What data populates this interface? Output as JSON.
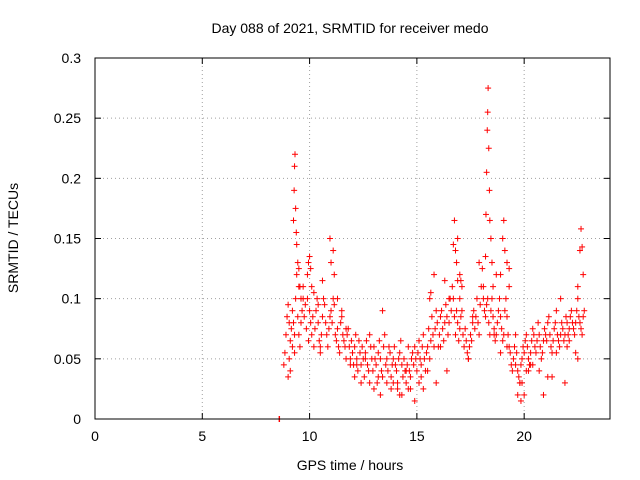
{
  "chart_data": {
    "type": "scatter",
    "title": "Day 088 of 2021, SRMTID for receiver medo",
    "xlabel": "GPS time / hours",
    "ylabel": "SRMTID / TECUs",
    "xlim": [
      0,
      24
    ],
    "ylim": [
      0,
      0.3
    ],
    "x_ticks": [
      {
        "value": 0,
        "label": "0"
      },
      {
        "value": 5,
        "label": "5"
      },
      {
        "value": 10,
        "label": "10"
      },
      {
        "value": 15,
        "label": "15"
      },
      {
        "value": 20,
        "label": "20"
      }
    ],
    "y_ticks": [
      {
        "value": 0,
        "label": "0"
      },
      {
        "value": 0.05,
        "label": "0.05"
      },
      {
        "value": 0.1,
        "label": "0.1"
      },
      {
        "value": 0.15,
        "label": "0.15"
      },
      {
        "value": 0.2,
        "label": "0.2"
      },
      {
        "value": 0.25,
        "label": "0.25"
      },
      {
        "value": 0.3,
        "label": "0.3"
      }
    ],
    "grid": true,
    "marker": "plus",
    "color": "#ff0000",
    "series": [
      {
        "name": "SRMTID",
        "x": [
          8.58,
          8.6,
          8.8,
          8.85,
          8.9,
          8.95,
          9.0,
          9.05,
          9.1,
          9.15,
          9.2,
          9.25,
          9.3,
          9.35,
          9.4,
          9.45,
          9.5,
          9.55,
          9.6,
          9.65,
          9.7,
          9.75,
          9.8,
          9.85,
          9.9,
          9.95,
          10.0,
          10.05,
          10.1,
          10.15,
          10.2,
          10.25,
          10.3,
          10.35,
          10.4,
          10.45,
          10.5,
          10.55,
          10.6,
          10.65,
          10.7,
          10.75,
          10.8,
          10.85,
          10.9,
          10.95,
          11.0,
          11.05,
          11.1,
          11.15,
          11.2,
          11.25,
          11.3,
          11.35,
          11.4,
          11.45,
          11.5,
          11.55,
          11.6,
          11.65,
          11.7,
          11.75,
          11.8,
          11.85,
          11.9,
          11.95,
          12.0,
          12.05,
          12.1,
          12.15,
          12.2,
          12.25,
          12.3,
          12.35,
          12.4,
          12.45,
          12.5,
          12.55,
          12.6,
          12.65,
          12.7,
          12.75,
          12.8,
          12.85,
          12.9,
          12.95,
          13.0,
          13.05,
          13.1,
          13.15,
          13.2,
          13.25,
          13.3,
          13.35,
          13.4,
          13.45,
          13.5,
          13.55,
          13.6,
          13.65,
          13.7,
          13.75,
          13.8,
          13.85,
          13.9,
          13.95,
          14.0,
          14.05,
          14.1,
          14.15,
          14.2,
          14.25,
          14.3,
          14.35,
          14.4,
          14.45,
          14.5,
          14.55,
          14.6,
          14.65,
          14.7,
          14.75,
          14.8,
          14.85,
          14.9,
          14.95,
          15.0,
          15.05,
          15.1,
          15.15,
          15.2,
          15.25,
          15.3,
          15.35,
          15.4,
          15.45,
          15.5,
          15.55,
          15.6,
          15.65,
          15.7,
          15.75,
          15.8,
          15.85,
          15.9,
          15.95,
          16.0,
          16.05,
          16.1,
          16.15,
          16.2,
          16.25,
          16.3,
          16.35,
          16.4,
          16.45,
          16.5,
          16.55,
          16.6,
          16.65,
          16.7,
          16.75,
          16.8,
          16.85,
          16.9,
          16.95,
          17.0,
          17.05,
          17.1,
          17.15,
          17.2,
          17.25,
          17.3,
          17.35,
          17.4,
          17.45,
          17.5,
          17.55,
          17.6,
          17.65,
          17.7,
          17.75,
          17.8,
          17.85,
          17.9,
          17.95,
          18.0,
          18.05,
          18.1,
          18.15,
          18.2,
          18.25,
          18.3,
          18.35,
          18.4,
          18.45,
          18.5,
          18.55,
          18.6,
          18.65,
          18.7,
          18.75,
          18.8,
          18.85,
          18.9,
          18.95,
          19.0,
          19.05,
          19.1,
          19.15,
          19.2,
          19.25,
          19.3,
          19.35,
          19.4,
          19.45,
          19.5,
          19.55,
          19.6,
          19.65,
          19.7,
          19.75,
          19.8,
          19.85,
          19.9,
          19.95,
          20.0,
          20.05,
          20.1,
          20.15,
          20.2,
          20.25,
          20.3,
          20.35,
          20.4,
          20.45,
          20.5,
          20.55,
          20.6,
          20.65,
          20.7,
          20.75,
          20.8,
          20.85,
          20.9,
          20.95,
          21.0,
          21.05,
          21.1,
          21.15,
          21.2,
          21.25,
          21.3,
          21.35,
          21.4,
          21.45,
          21.5,
          21.55,
          21.6,
          21.65,
          21.7,
          21.75,
          21.8,
          21.85,
          21.9,
          21.95,
          22.0,
          22.05,
          22.1,
          22.15,
          22.2,
          22.25,
          22.3,
          22.35,
          22.4,
          22.45,
          22.5,
          22.55,
          22.6,
          22.65,
          22.7,
          22.75,
          22.8,
          9.25,
          9.28,
          9.3,
          9.32,
          9.35,
          9.38,
          9.4,
          9.45,
          9.5,
          9.55,
          9.9,
          9.95,
          10.0,
          10.05,
          10.95,
          11.0,
          11.1,
          11.15,
          16.7,
          16.75,
          16.8,
          16.85,
          16.9,
          17.0,
          17.05,
          17.1,
          18.2,
          18.22,
          18.25,
          18.28,
          18.3,
          18.32,
          18.35,
          18.38,
          18.4,
          18.45,
          18.5,
          18.55,
          18.9,
          19.0,
          19.05,
          19.1,
          19.2,
          19.3,
          22.6,
          22.65,
          22.7,
          22.75,
          22.5,
          15.6,
          15.65,
          15.8,
          16.3,
          16.5,
          9.0,
          9.1,
          9.2,
          9.5,
          9.7,
          10.2,
          10.4,
          10.6,
          11.5,
          11.7,
          12.2,
          12.6,
          13.2,
          13.6,
          14.1,
          14.3,
          14.7,
          15.2,
          15.5,
          16.1,
          16.9,
          17.4,
          17.9,
          18.6,
          18.9,
          19.2,
          19.6,
          19.9,
          20.1,
          20.4,
          20.9,
          21.3,
          21.7,
          22.1,
          22.4,
          9.05,
          9.3,
          9.6,
          10.1,
          10.5,
          11.3,
          11.9,
          12.4,
          13.0,
          13.4,
          13.9,
          14.5,
          14.9,
          15.3,
          15.9,
          16.4,
          17.0,
          17.6,
          18.1,
          18.7,
          19.3,
          19.8,
          20.3,
          20.7,
          21.1,
          21.5,
          22.0,
          22.5,
          12.1,
          12.8,
          13.3,
          13.8,
          14.2,
          14.6,
          15.1,
          19.7,
          19.85,
          20.0,
          20.2,
          21.9
        ],
        "y": [
          0.0,
          0.0,
          0.045,
          0.055,
          0.07,
          0.085,
          0.095,
          0.08,
          0.065,
          0.075,
          0.09,
          0.08,
          0.07,
          0.1,
          0.12,
          0.085,
          0.07,
          0.06,
          0.08,
          0.09,
          0.11,
          0.085,
          0.095,
          0.075,
          0.1,
          0.065,
          0.09,
          0.08,
          0.07,
          0.085,
          0.06,
          0.075,
          0.09,
          0.1,
          0.08,
          0.065,
          0.055,
          0.07,
          0.085,
          0.1,
          0.095,
          0.08,
          0.07,
          0.06,
          0.075,
          0.085,
          0.09,
          0.08,
          0.1,
          0.095,
          0.07,
          0.065,
          0.075,
          0.06,
          0.055,
          0.08,
          0.085,
          0.07,
          0.065,
          0.06,
          0.05,
          0.07,
          0.075,
          0.06,
          0.05,
          0.065,
          0.055,
          0.045,
          0.06,
          0.07,
          0.05,
          0.04,
          0.065,
          0.055,
          0.045,
          0.06,
          0.05,
          0.035,
          0.055,
          0.065,
          0.045,
          0.04,
          0.07,
          0.06,
          0.05,
          0.04,
          0.06,
          0.05,
          0.045,
          0.03,
          0.055,
          0.065,
          0.05,
          0.04,
          0.035,
          0.06,
          0.07,
          0.045,
          0.05,
          0.04,
          0.06,
          0.055,
          0.035,
          0.045,
          0.05,
          0.06,
          0.045,
          0.04,
          0.03,
          0.05,
          0.055,
          0.065,
          0.045,
          0.035,
          0.05,
          0.04,
          0.03,
          0.045,
          0.06,
          0.04,
          0.035,
          0.05,
          0.055,
          0.045,
          0.06,
          0.05,
          0.04,
          0.055,
          0.065,
          0.05,
          0.045,
          0.06,
          0.07,
          0.05,
          0.04,
          0.055,
          0.06,
          0.075,
          0.05,
          0.065,
          0.085,
          0.07,
          0.06,
          0.075,
          0.09,
          0.08,
          0.06,
          0.07,
          0.085,
          0.09,
          0.075,
          0.065,
          0.08,
          0.095,
          0.085,
          0.07,
          0.08,
          0.1,
          0.09,
          0.11,
          0.1,
          0.085,
          0.07,
          0.09,
          0.08,
          0.065,
          0.075,
          0.085,
          0.09,
          0.07,
          0.06,
          0.075,
          0.065,
          0.055,
          0.05,
          0.06,
          0.07,
          0.065,
          0.08,
          0.09,
          0.075,
          0.085,
          0.1,
          0.08,
          0.07,
          0.095,
          0.11,
          0.125,
          0.1,
          0.09,
          0.085,
          0.095,
          0.1,
          0.08,
          0.07,
          0.09,
          0.1,
          0.085,
          0.075,
          0.065,
          0.07,
          0.08,
          0.09,
          0.1,
          0.085,
          0.075,
          0.065,
          0.07,
          0.09,
          0.1,
          0.085,
          0.07,
          0.06,
          0.055,
          0.045,
          0.04,
          0.05,
          0.06,
          0.07,
          0.055,
          0.04,
          0.035,
          0.03,
          0.045,
          0.05,
          0.06,
          0.055,
          0.065,
          0.07,
          0.06,
          0.05,
          0.045,
          0.055,
          0.065,
          0.075,
          0.07,
          0.06,
          0.055,
          0.065,
          0.08,
          0.07,
          0.06,
          0.05,
          0.055,
          0.065,
          0.075,
          0.07,
          0.065,
          0.08,
          0.085,
          0.07,
          0.06,
          0.055,
          0.065,
          0.075,
          0.08,
          0.09,
          0.07,
          0.065,
          0.06,
          0.07,
          0.08,
          0.075,
          0.065,
          0.07,
          0.085,
          0.08,
          0.07,
          0.075,
          0.085,
          0.09,
          0.08,
          0.075,
          0.07,
          0.08,
          0.09,
          0.1,
          0.085,
          0.08,
          0.075,
          0.07,
          0.085,
          0.09,
          0.165,
          0.19,
          0.21,
          0.22,
          0.175,
          0.155,
          0.145,
          0.13,
          0.125,
          0.11,
          0.12,
          0.13,
          0.135,
          0.125,
          0.15,
          0.13,
          0.14,
          0.12,
          0.145,
          0.165,
          0.14,
          0.13,
          0.15,
          0.12,
          0.115,
          0.11,
          0.135,
          0.17,
          0.205,
          0.24,
          0.255,
          0.275,
          0.225,
          0.19,
          0.165,
          0.15,
          0.13,
          0.11,
          0.12,
          0.15,
          0.165,
          0.14,
          0.13,
          0.125,
          0.14,
          0.158,
          0.143,
          0.12,
          0.11,
          0.1,
          0.105,
          0.12,
          0.115,
          0.1,
          0.035,
          0.04,
          0.06,
          0.11,
          0.1,
          0.105,
          0.095,
          0.115,
          0.09,
          0.075,
          0.045,
          0.05,
          0.035,
          0.03,
          0.025,
          0.02,
          0.025,
          0.035,
          0.04,
          0.06,
          0.115,
          0.05,
          0.13,
          0.07,
          0.055,
          0.06,
          0.045,
          0.03,
          0.04,
          0.045,
          0.02,
          0.035,
          0.1,
          0.065,
          0.055,
          0.05,
          0.055,
          0.1,
          0.11,
          0.06,
          0.1,
          0.045,
          0.03,
          0.025,
          0.09,
          0.03,
          0.04,
          0.015,
          0.025,
          0.03,
          0.04,
          0.1,
          0.085,
          0.11,
          0.12,
          0.11,
          0.03,
          0.045,
          0.04,
          0.035,
          0.055,
          0.06,
          0.05,
          0.035,
          0.03,
          0.02,
          0.025,
          0.02,
          0.025,
          0.03,
          0.02,
          0.015,
          0.02,
          0.04,
          0.03
        ]
      }
    ]
  }
}
